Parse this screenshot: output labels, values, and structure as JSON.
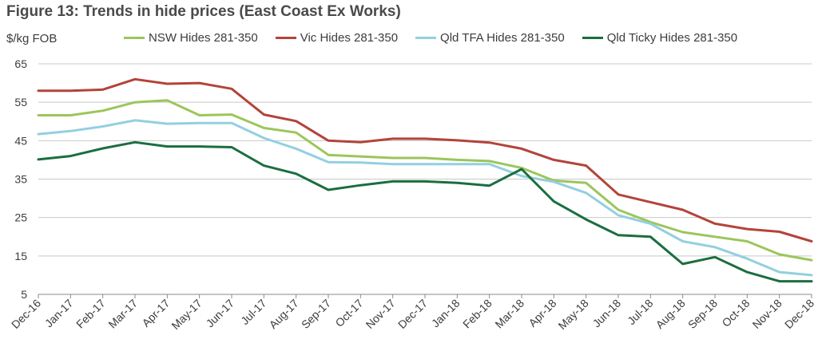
{
  "title": "Figure 13: Trends in hide prices (East Coast Ex Works)",
  "chart_data": {
    "type": "line",
    "ylabel": "$/kg FOB",
    "ylim": [
      5,
      65
    ],
    "yticks": [
      5,
      15,
      25,
      35,
      45,
      55,
      65
    ],
    "grid": true,
    "legend_position": "top",
    "categories": [
      "Dec-16",
      "Jan-17",
      "Feb-17",
      "Mar-17",
      "Apr-17",
      "May-17",
      "Jun-17",
      "Jul-17",
      "Aug-17",
      "Sep-17",
      "Oct-17",
      "Nov-17",
      "Dec-17",
      "Jan-18",
      "Feb-18",
      "Mar-18",
      "Apr-18",
      "May-18",
      "Jun-18",
      "Jul-18",
      "Aug-18",
      "Sep-18",
      "Oct-18",
      "Nov-18",
      "Dec-18"
    ],
    "series": [
      {
        "name": "NSW Hides 281-350",
        "color": "#9bc65a",
        "values": [
          51.6,
          51.6,
          52.8,
          55.0,
          55.5,
          51.6,
          51.8,
          48.3,
          47.1,
          41.3,
          40.9,
          40.5,
          40.5,
          40.0,
          39.7,
          37.9,
          34.6,
          34.0,
          27.0,
          23.8,
          21.2,
          20.0,
          18.8,
          15.4,
          13.9
        ]
      },
      {
        "name": "Vic Hides 281-350",
        "color": "#b3443a",
        "values": [
          58.0,
          58.0,
          58.3,
          61.0,
          59.8,
          60.0,
          58.5,
          51.8,
          50.1,
          45.0,
          44.6,
          45.5,
          45.5,
          45.1,
          44.5,
          42.9,
          40.0,
          38.5,
          31.0,
          29.0,
          27.0,
          23.4,
          22.0,
          21.3,
          18.8
        ]
      },
      {
        "name": "Qld TFA Hides 281-350",
        "color": "#93cfe0",
        "values": [
          46.7,
          47.5,
          48.7,
          50.3,
          49.4,
          49.6,
          49.6,
          45.7,
          42.9,
          39.4,
          39.3,
          38.9,
          38.9,
          38.9,
          38.9,
          35.8,
          34.3,
          31.4,
          25.6,
          23.4,
          18.8,
          17.3,
          14.3,
          10.8,
          10.0
        ]
      },
      {
        "name": "Qld Ticky Hides 281-350",
        "color": "#1b6e3f",
        "values": [
          40.1,
          41.0,
          43.0,
          44.6,
          43.5,
          43.5,
          43.3,
          38.5,
          36.4,
          32.2,
          33.4,
          34.4,
          34.4,
          34.0,
          33.3,
          37.6,
          29.2,
          24.5,
          20.4,
          20.0,
          12.9,
          14.7,
          10.8,
          8.4,
          8.4
        ]
      }
    ]
  }
}
